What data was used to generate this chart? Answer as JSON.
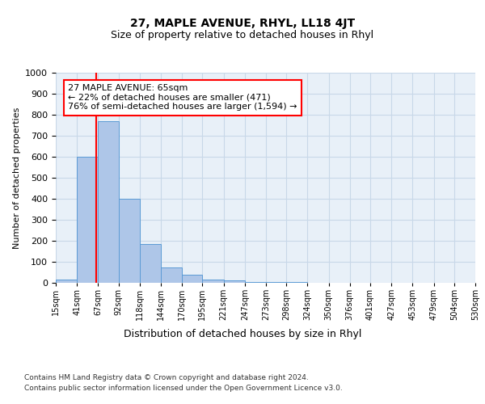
{
  "title": "27, MAPLE AVENUE, RHYL, LL18 4JT",
  "subtitle": "Size of property relative to detached houses in Rhyl",
  "xlabel": "Distribution of detached houses by size in Rhyl",
  "ylabel": "Number of detached properties",
  "bin_edges": [
    15,
    41,
    67,
    92,
    118,
    144,
    170,
    195,
    221,
    247,
    273,
    298,
    324,
    350,
    376,
    401,
    427,
    453,
    479,
    504,
    530
  ],
  "bar_heights": [
    15,
    600,
    770,
    400,
    185,
    75,
    40,
    15,
    10,
    5,
    3,
    2,
    1,
    1,
    1,
    0,
    0,
    0,
    0,
    0
  ],
  "bar_color": "#aec6e8",
  "bar_edge_color": "#5b9bd5",
  "property_line_x": 65,
  "property_line_color": "red",
  "annotation_text": "27 MAPLE AVENUE: 65sqm\n← 22% of detached houses are smaller (471)\n76% of semi-detached houses are larger (1,594) →",
  "annotation_box_color": "white",
  "annotation_box_edge_color": "red",
  "ylim": [
    0,
    1000
  ],
  "yticks": [
    0,
    100,
    200,
    300,
    400,
    500,
    600,
    700,
    800,
    900,
    1000
  ],
  "grid_color": "#c8d8e8",
  "background_color": "#e8f0f8",
  "footer_line1": "Contains HM Land Registry data © Crown copyright and database right 2024.",
  "footer_line2": "Contains public sector information licensed under the Open Government Licence v3.0.",
  "title_fontsize": 10,
  "subtitle_fontsize": 9,
  "annotation_fontsize": 8,
  "ylabel_fontsize": 8,
  "xlabel_fontsize": 9,
  "ytick_fontsize": 8,
  "xtick_fontsize": 7
}
